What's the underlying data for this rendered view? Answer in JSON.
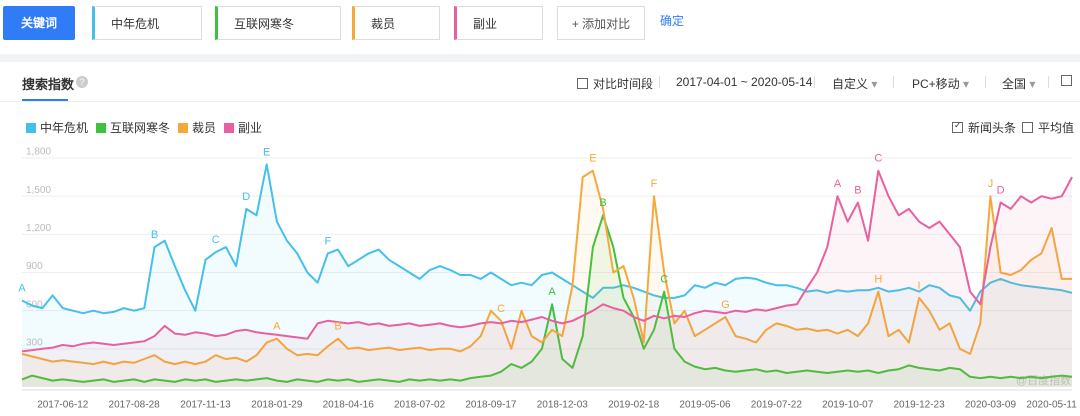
{
  "toolbar": {
    "button": "关键词",
    "keywords": [
      {
        "text": "中年危机",
        "color": "#45c0ea"
      },
      {
        "text": "互联网寒冬",
        "color": "#3cc23c"
      },
      {
        "text": "裁员",
        "color": "#f5a93a"
      },
      {
        "text": "副业",
        "color": "#e9609f"
      }
    ],
    "add": "+ 添加对比",
    "confirm": "确定"
  },
  "panel": {
    "title": "搜索指数",
    "compare": "对比时间段",
    "range": "2017-04-01 ~ 2020-05-14",
    "custom": "自定义",
    "device": "PC+移动",
    "region": "全国",
    "news": "新闻头条",
    "average": "平均值",
    "watermark": "@百度指数"
  },
  "chart_data": {
    "type": "line",
    "grid": true,
    "categories": [
      null,
      null,
      null,
      null,
      "2017-06-12",
      null,
      null,
      null,
      null,
      null,
      null,
      "2017-08-28",
      null,
      null,
      null,
      null,
      null,
      null,
      "2017-11-13",
      null,
      null,
      null,
      null,
      null,
      null,
      "2018-01-29",
      null,
      null,
      null,
      null,
      null,
      null,
      "2018-04-16",
      null,
      null,
      null,
      null,
      null,
      null,
      "2018-07-02",
      null,
      null,
      null,
      null,
      null,
      null,
      "2018-09-17",
      null,
      null,
      null,
      null,
      null,
      null,
      "2018-12-03",
      null,
      null,
      null,
      null,
      null,
      null,
      "2019-02-18",
      null,
      null,
      null,
      null,
      null,
      null,
      "2019-05-06",
      null,
      null,
      null,
      null,
      null,
      null,
      "2019-07-22",
      null,
      null,
      null,
      null,
      null,
      null,
      "2019-10-07",
      null,
      null,
      null,
      null,
      null,
      null,
      "2019-12-23",
      null,
      null,
      null,
      null,
      null,
      null,
      "2020-03-09",
      null,
      null,
      null,
      null,
      null,
      "2020-05-11",
      null,
      null
    ],
    "ylim": [
      0,
      1800
    ],
    "yticks": [
      300,
      600,
      900,
      {
        "value": 1200,
        "label": "1,200"
      },
      {
        "value": 1500,
        "label": "1,500"
      },
      {
        "value": 1800,
        "label": "1,800"
      }
    ],
    "series": [
      {
        "name": "中年危机",
        "color": "#45c0ea",
        "values": [
          680,
          640,
          620,
          720,
          620,
          600,
          580,
          600,
          580,
          590,
          620,
          600,
          620,
          1100,
          1150,
          950,
          760,
          600,
          1000,
          1060,
          1100,
          950,
          1400,
          1350,
          1750,
          1300,
          1150,
          1050,
          900,
          820,
          1050,
          1080,
          950,
          1000,
          1050,
          1080,
          1000,
          950,
          900,
          850,
          920,
          950,
          920,
          880,
          880,
          850,
          900,
          850,
          800,
          820,
          800,
          880,
          900,
          850,
          800,
          750,
          700,
          780,
          780,
          800,
          780,
          750,
          720,
          700,
          700,
          720,
          800,
          780,
          820,
          800,
          850,
          860,
          850,
          820,
          800,
          800,
          780,
          750,
          760,
          740,
          760,
          750,
          760,
          760,
          780,
          750,
          760,
          780,
          750,
          800,
          780,
          720,
          700,
          600,
          750,
          820,
          850,
          820,
          800,
          790,
          780,
          770,
          760,
          740
        ],
        "annotations": [
          {
            "text": "A",
            "point": 0
          },
          {
            "text": "B",
            "point": 13
          },
          {
            "text": "C",
            "point": 19
          },
          {
            "text": "D",
            "point": 22
          },
          {
            "text": "E",
            "point": 24
          },
          {
            "text": "F",
            "point": 30
          }
        ]
      },
      {
        "name": "互联网寒冬",
        "color": "#3cc23c",
        "values": [
          60,
          90,
          70,
          50,
          60,
          50,
          40,
          50,
          60,
          40,
          50,
          60,
          40,
          60,
          50,
          40,
          60,
          50,
          60,
          40,
          50,
          60,
          50,
          60,
          70,
          50,
          40,
          60,
          50,
          40,
          60,
          50,
          60,
          40,
          50,
          60,
          50,
          40,
          60,
          50,
          60,
          50,
          60,
          50,
          70,
          80,
          90,
          120,
          180,
          150,
          200,
          300,
          650,
          220,
          150,
          400,
          1100,
          1350,
          1100,
          700,
          550,
          300,
          450,
          750,
          300,
          200,
          160,
          140,
          150,
          130,
          120,
          130,
          140,
          120,
          130,
          110,
          120,
          130,
          120,
          110,
          120,
          130,
          120,
          130,
          110,
          130,
          140,
          170,
          150,
          140,
          130,
          150,
          140,
          80,
          70,
          80,
          70,
          80,
          70,
          80,
          70,
          80,
          90,
          80
        ],
        "annotations": [
          {
            "text": "A",
            "point": 52
          },
          {
            "text": "B",
            "point": 57
          },
          {
            "text": "C",
            "point": 63
          }
        ]
      },
      {
        "name": "裁员",
        "color": "#f5a93a",
        "values": [
          260,
          240,
          220,
          200,
          210,
          200,
          190,
          180,
          200,
          180,
          200,
          190,
          220,
          250,
          200,
          180,
          200,
          180,
          200,
          250,
          220,
          230,
          200,
          250,
          350,
          380,
          300,
          250,
          260,
          250,
          320,
          380,
          300,
          310,
          290,
          300,
          310,
          290,
          300,
          310,
          290,
          300,
          300,
          280,
          320,
          400,
          600,
          520,
          300,
          600,
          400,
          350,
          450,
          400,
          800,
          1650,
          1700,
          1400,
          900,
          950,
          700,
          350,
          1500,
          900,
          500,
          600,
          400,
          450,
          500,
          550,
          400,
          380,
          350,
          450,
          500,
          480,
          450,
          460,
          440,
          450,
          420,
          450,
          400,
          500,
          750,
          400,
          450,
          350,
          700,
          600,
          450,
          500,
          300,
          260,
          500,
          1500,
          900,
          880,
          920,
          1000,
          1050,
          1250,
          850,
          850
        ],
        "annotations": [
          {
            "text": "A",
            "point": 25
          },
          {
            "text": "B",
            "point": 31
          },
          {
            "text": "C",
            "point": 47
          },
          {
            "text": "E",
            "point": 56
          },
          {
            "text": "F",
            "point": 62
          },
          {
            "text": "G",
            "point": 69
          },
          {
            "text": "H",
            "point": 84
          },
          {
            "text": "I",
            "point": 88
          },
          {
            "text": "J",
            "point": 95
          }
        ]
      },
      {
        "name": "副业",
        "color": "#e9609f",
        "values": [
          280,
          290,
          300,
          310,
          330,
          320,
          340,
          350,
          340,
          330,
          340,
          350,
          360,
          400,
          480,
          420,
          410,
          430,
          420,
          400,
          410,
          440,
          450,
          430,
          420,
          410,
          400,
          390,
          380,
          500,
          520,
          510,
          500,
          510,
          490,
          500,
          480,
          490,
          500,
          480,
          490,
          500,
          480,
          470,
          480,
          500,
          510,
          500,
          520,
          510,
          530,
          550,
          520,
          500,
          520,
          560,
          600,
          650,
          620,
          600,
          550,
          520,
          560,
          540,
          560,
          550,
          580,
          600,
          590,
          580,
          600,
          590,
          610,
          600,
          620,
          640,
          650,
          780,
          900,
          1100,
          1500,
          1300,
          1450,
          1150,
          1700,
          1500,
          1350,
          1400,
          1300,
          1250,
          1300,
          1200,
          1100,
          750,
          650,
          1100,
          1450,
          1400,
          1500,
          1450,
          1500,
          1480,
          1500,
          1650
        ],
        "annotations": [
          {
            "text": "A",
            "point": 80
          },
          {
            "text": "B",
            "point": 82
          },
          {
            "text": "C",
            "point": 84
          },
          {
            "text": "D",
            "point": 96
          }
        ]
      }
    ]
  }
}
